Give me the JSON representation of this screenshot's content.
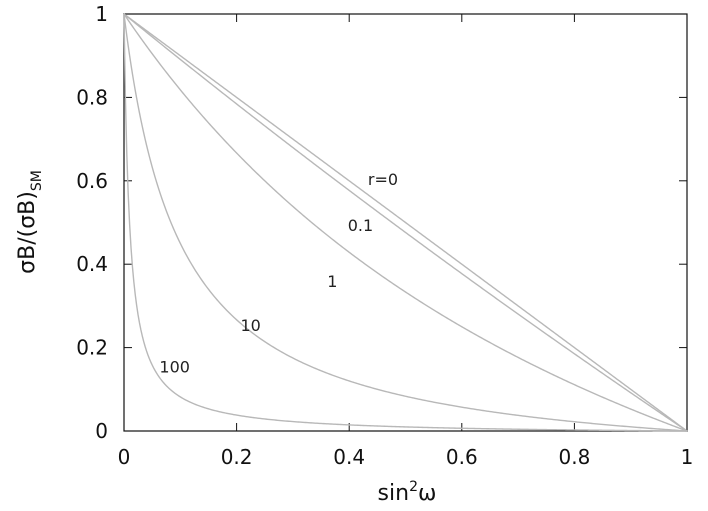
{
  "chart_data": {
    "type": "line",
    "xlabel_main": "sin",
    "xlabel_sup": "2",
    "xlabel_tail": "ω",
    "ylabel_main": "σB/(σB)",
    "ylabel_sub": "SM",
    "xlim": [
      0,
      1
    ],
    "ylim": [
      0,
      1
    ],
    "xticks": [
      "0",
      "0.2",
      "0.4",
      "0.6",
      "0.8",
      "1"
    ],
    "yticks": [
      "0",
      "0.2",
      "0.4",
      "0.6",
      "0.8",
      "1"
    ],
    "grid": false,
    "curve_color": "#b8b8b8",
    "formula": "y = (1 - x) / (1 + r*x)",
    "series": [
      {
        "r": 0,
        "label": "r=0",
        "label_at": {
          "x": 0.46,
          "y": 0.59
        }
      },
      {
        "r": 0.1,
        "label": "0.1",
        "label_at": {
          "x": 0.42,
          "y": 0.48
        }
      },
      {
        "r": 1,
        "label": "1",
        "label_at": {
          "x": 0.37,
          "y": 0.345
        }
      },
      {
        "r": 10,
        "label": "10",
        "label_at": {
          "x": 0.225,
          "y": 0.24
        }
      },
      {
        "r": 100,
        "label": "100",
        "label_at": {
          "x": 0.09,
          "y": 0.14
        }
      }
    ]
  }
}
